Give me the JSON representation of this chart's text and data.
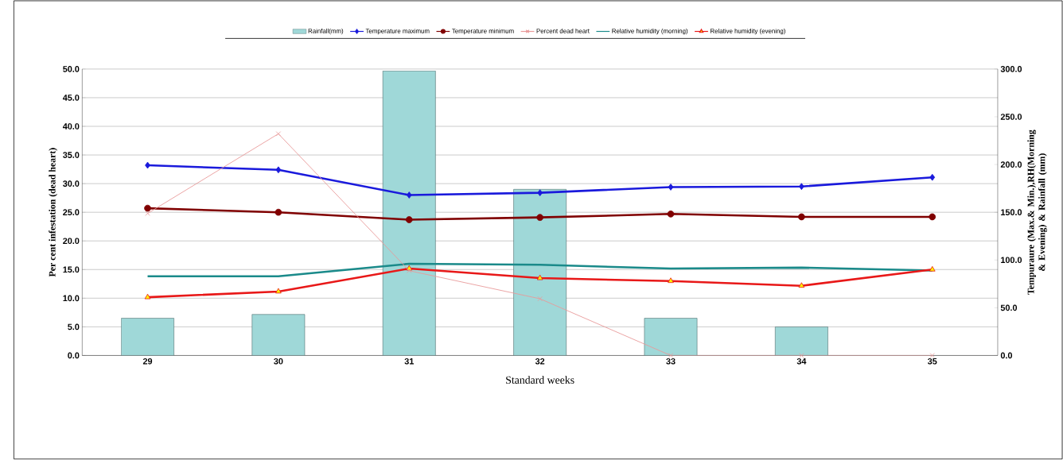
{
  "chart_data": {
    "type": "line",
    "categories": [
      "29",
      "30",
      "31",
      "32",
      "33",
      "34",
      "35"
    ],
    "xlabel": "Standard weeks",
    "ylabel": "Per cent infestation (dead heart)",
    "y2label": "Tempuraure (Max.& Min.),RH(Morning & Evening) & Rainfall (mm)",
    "ylim": [
      0,
      50
    ],
    "yticks": [
      {
        "value": 0,
        "label": "0.0"
      },
      {
        "value": 5,
        "label": "5.0"
      },
      {
        "value": 10,
        "label": "10.0"
      },
      {
        "value": 15,
        "label": "15.0"
      },
      {
        "value": 20,
        "label": "20.0"
      },
      {
        "value": 25,
        "label": "25.0"
      },
      {
        "value": 30,
        "label": "30.0"
      },
      {
        "value": 35,
        "label": "35.0"
      },
      {
        "value": 40,
        "label": "40.0"
      },
      {
        "value": 45,
        "label": "45.0"
      },
      {
        "value": 50,
        "label": "50.0"
      }
    ],
    "y2lim": [
      0,
      300
    ],
    "y2ticks": [
      {
        "value": 0,
        "label": "0.0"
      },
      {
        "value": 50,
        "label": "50.0"
      },
      {
        "value": 100,
        "label": "100.0"
      },
      {
        "value": 150,
        "label": "150.0"
      },
      {
        "value": 200,
        "label": "200.0"
      },
      {
        "value": 250,
        "label": "250.0"
      },
      {
        "value": 300,
        "label": "300.0"
      }
    ],
    "grid": "y",
    "legend": "top",
    "series": [
      {
        "name": "Rainfall(mm)",
        "type": "bar",
        "axis": "y2",
        "color": "#9fd8d8",
        "values": [
          39,
          43,
          298,
          174,
          39,
          30,
          null
        ]
      },
      {
        "name": "Temperature maximum",
        "axis": "y",
        "marker": "diamond",
        "color": "#1a1adc",
        "values": [
          33.2,
          32.4,
          28.0,
          28.4,
          29.4,
          29.5,
          31.1
        ]
      },
      {
        "name": "Temperature minimum",
        "axis": "y",
        "marker": "circle",
        "color": "#800000",
        "values": [
          25.7,
          25.0,
          23.7,
          24.1,
          24.7,
          24.2,
          24.2
        ]
      },
      {
        "name": "Percent dead heart",
        "axis": "y",
        "marker": "cross",
        "color": "#e89a9a",
        "values": [
          24.8,
          38.7,
          14.8,
          9.9,
          0.0,
          0.0,
          0.0
        ]
      },
      {
        "name": "Relative humidity (morning)",
        "axis": "y2",
        "marker": "none",
        "color": "#1a8a8a",
        "values": [
          83,
          83,
          96,
          95,
          91,
          92,
          89
        ]
      },
      {
        "name": "Relative humidity (evening)",
        "axis": "y2",
        "marker": "triangle",
        "color": "#e81818",
        "values": [
          61,
          67,
          91,
          81,
          78,
          73,
          90
        ]
      }
    ]
  }
}
